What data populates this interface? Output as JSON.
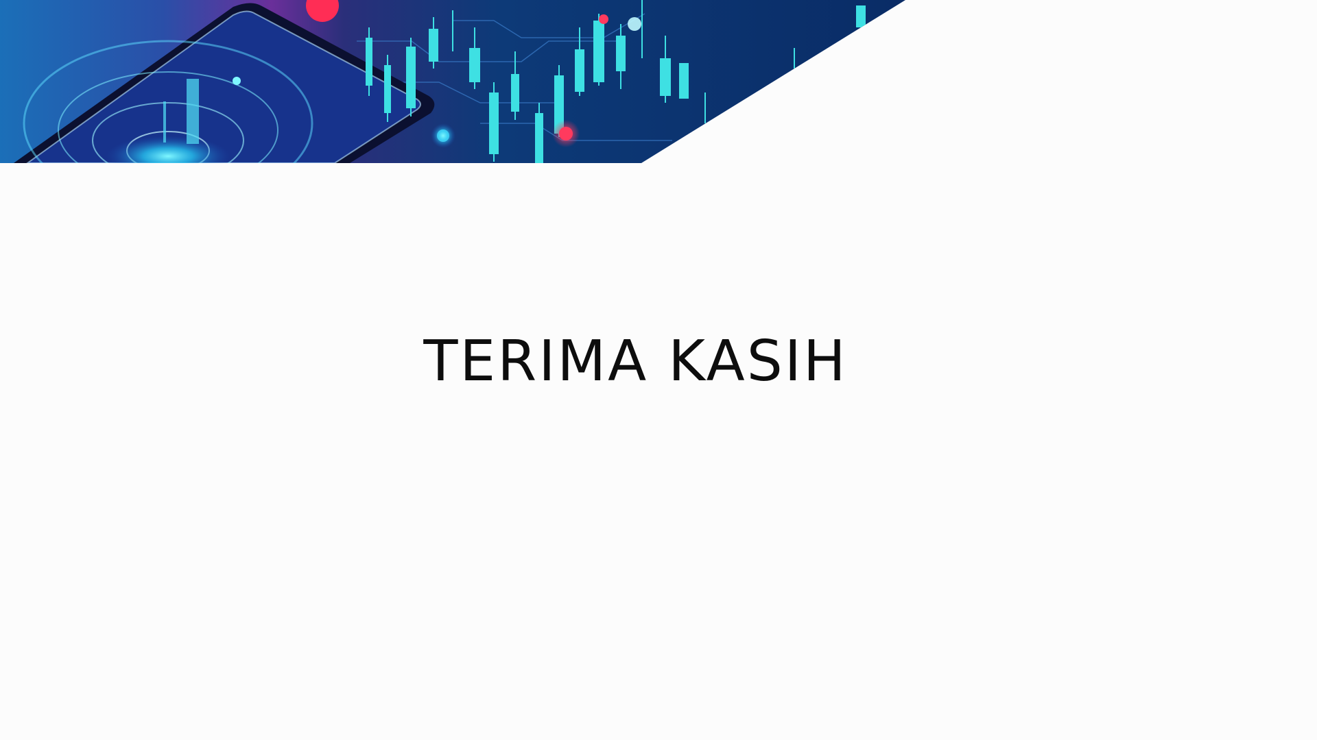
{
  "slide": {
    "title": "TERIMA KASIH"
  },
  "banner": {
    "image": "stock-market-phone-illustration",
    "colors": {
      "navy": "#0b2b63",
      "purple": "#5a2a8a",
      "magenta": "#c8327a",
      "cyan": "#3ce6e6",
      "red": "#ff2d55"
    }
  }
}
